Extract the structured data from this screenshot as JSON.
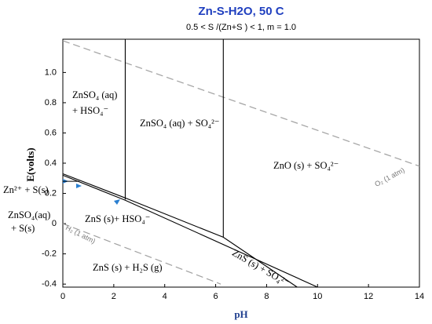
{
  "chart_data": {
    "type": "line",
    "title": "Zn-S-H2O, 50 C",
    "subtitle": "0.5 < S /(Zn+S ) < 1, m = 1.0",
    "x_label": "pH",
    "y_label": "E(volts)",
    "xlim": [
      0,
      14
    ],
    "ylim": [
      -0.42,
      1.22
    ],
    "xticks": [
      0,
      2,
      4,
      6,
      8,
      10,
      12,
      14
    ],
    "yticks": [
      -0.4,
      -0.2,
      0,
      0.2,
      0.4,
      0.6,
      0.8,
      {
        "value": 1,
        "label": "1.0"
      }
    ],
    "lines": [
      {
        "x": [
          0,
          14
        ],
        "y": [
          1.21,
          0.38
        ],
        "color": "#a0a0a0",
        "dashed": true
      },
      {
        "x": [
          0,
          6.2
        ],
        "y": [
          0,
          -0.4
        ],
        "color": "#a0a0a0",
        "dashed": true
      },
      {
        "x": [
          2.45,
          2.45
        ],
        "y": [
          1.22,
          0.16
        ],
        "color": "#000000",
        "dashed": false
      },
      {
        "x": [
          6.3,
          6.3
        ],
        "y": [
          1.22,
          -0.09
        ],
        "color": "#000000",
        "dashed": false
      },
      {
        "x": [
          0,
          2.45,
          6.3,
          9.2
        ],
        "y": [
          0.33,
          0.17,
          -0.09,
          -0.42
        ],
        "color": "#000000",
        "dashed": false
      },
      {
        "x": [
          0,
          2.45,
          10
        ],
        "y": [
          0.32,
          0.155,
          -0.42
        ],
        "color": "#000000",
        "dashed": false
      },
      {
        "x": [
          0,
          0.65
        ],
        "y": [
          0.28,
          0.28
        ],
        "color": "#000000",
        "dashed": false
      }
    ],
    "annotations": [
      "ZnSO₄ (aq)",
      "+ HSO₄⁻",
      "ZnSO₄ (aq) + SO₄²⁻",
      "ZnO (s) + SO₄²⁻",
      "Zn²⁺ + S(s)",
      "ZnSO₄(aq)",
      "+ S(s)",
      "ZnS (s)+ HSO₄⁻",
      "ZnS (s) + H₂S (g)",
      "ZnS (s) + SO₄²⁻",
      "O₂ (1 atm)",
      "H₂ (1 atm)"
    ]
  }
}
